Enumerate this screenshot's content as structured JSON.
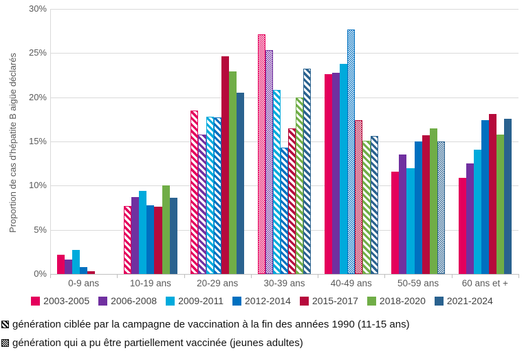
{
  "chart_data": {
    "type": "bar",
    "title": "",
    "xlabel": "",
    "ylabel": "Proportion de cas d'hépatite B aigüe déclarés",
    "ylim": [
      0,
      30
    ],
    "ytick_values": [
      0,
      5,
      10,
      15,
      20,
      25,
      30
    ],
    "ytick_suffix": "%",
    "grid": true,
    "legend_position": "bottom",
    "categories": [
      "0-9 ans",
      "10-19 ans",
      "20-29 ans",
      "30-39 ans",
      "40-49 ans",
      "50-59 ans",
      "60 ans et +"
    ],
    "series": [
      {
        "name": "2003-2005",
        "color": "#E4005C",
        "values": [
          2.2,
          7.7,
          18.5,
          27.1,
          22.6,
          11.6,
          10.9
        ],
        "patterns": [
          "solid",
          "diag",
          "diag",
          "dots",
          "solid",
          "solid",
          "solid"
        ]
      },
      {
        "name": "2006-2008",
        "color": "#7030A0",
        "values": [
          1.6,
          8.7,
          15.8,
          25.3,
          22.8,
          13.5,
          12.5
        ],
        "patterns": [
          "solid",
          "solid",
          "diag",
          "dots",
          "solid",
          "solid",
          "solid"
        ]
      },
      {
        "name": "2009-2011",
        "color": "#00AADC",
        "values": [
          2.7,
          9.4,
          17.8,
          20.8,
          23.8,
          12.0,
          14.1
        ],
        "patterns": [
          "solid",
          "solid",
          "diag",
          "diag",
          "solid",
          "solid",
          "solid"
        ]
      },
      {
        "name": "2012-2014",
        "color": "#0070C0",
        "values": [
          0.8,
          7.8,
          17.7,
          14.3,
          27.7,
          15.0,
          17.4
        ],
        "patterns": [
          "solid",
          "solid",
          "diag",
          "diag",
          "dots",
          "solid",
          "solid"
        ]
      },
      {
        "name": "2015-2017",
        "color": "#B60A3C",
        "values": [
          0.3,
          7.6,
          24.6,
          16.5,
          17.4,
          15.7,
          18.1
        ],
        "patterns": [
          "solid",
          "solid",
          "solid",
          "diag",
          "dots",
          "solid",
          "solid"
        ]
      },
      {
        "name": "2018-2020",
        "color": "#70AD47",
        "values": [
          0,
          10.0,
          22.9,
          20.0,
          15.1,
          16.5,
          15.8
        ],
        "patterns": [
          "solid",
          "solid",
          "solid",
          "diag",
          "diag",
          "solid",
          "solid"
        ]
      },
      {
        "name": "2021-2024",
        "color": "#2A628F",
        "values": [
          0,
          8.6,
          20.5,
          23.2,
          15.6,
          15.0,
          17.6
        ],
        "patterns": [
          "solid",
          "solid",
          "solid",
          "diag",
          "diag",
          "dots",
          "solid"
        ]
      }
    ]
  },
  "footnotes": [
    {
      "icon": "diagonal-hatch-icon",
      "pattern": "diag",
      "text": "génération ciblée par la campagne de vaccination à la fin des années 1990 (11-15 ans)"
    },
    {
      "icon": "checker-dots-icon",
      "pattern": "dots",
      "text": "génération qui a pu être partiellement vaccinée (jeunes adultes)"
    }
  ]
}
